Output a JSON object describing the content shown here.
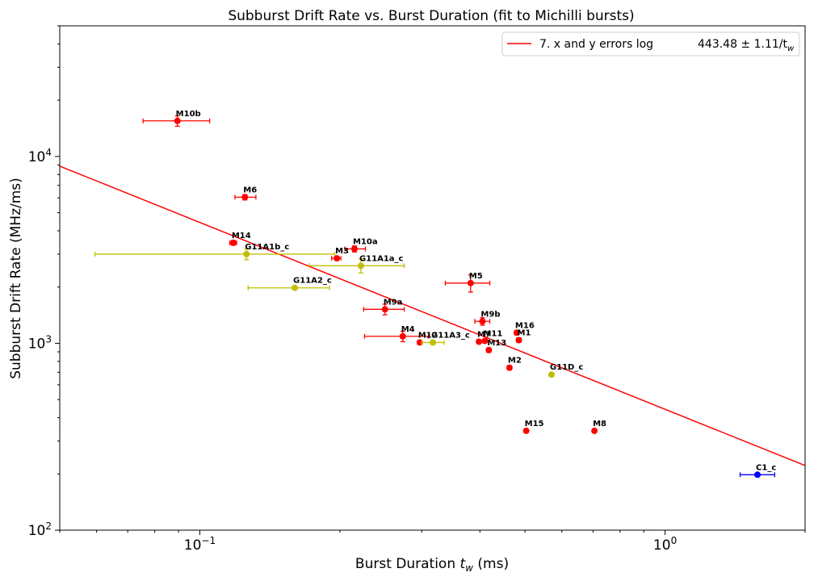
{
  "chart_data": {
    "type": "scatter",
    "title": "Subburst Drift Rate vs. Burst Duration (fit to Michilli bursts)",
    "xlabel": "Burst Duration t_w (ms)",
    "ylabel": "Subburst Drift Rate (MHz/ms)",
    "x_scale": "log",
    "y_scale": "log",
    "xlim": [
      0.05,
      2.0
    ],
    "ylim": [
      100,
      50000
    ],
    "x_ticks": [
      {
        "value": 0.1,
        "label": "10",
        "exp": "−1"
      },
      {
        "value": 1.0,
        "label": "10",
        "exp": "0"
      }
    ],
    "y_ticks": [
      {
        "value": 100,
        "label": "10",
        "exp": "2"
      },
      {
        "value": 1000,
        "label": "10",
        "exp": "3"
      },
      {
        "value": 10000,
        "label": "10",
        "exp": "4"
      }
    ],
    "legend": {
      "position": "top-right",
      "label": "7. x and y errors log",
      "fit_text": "443.48 ± 1.11/t",
      "fit_sub": "w"
    },
    "fit_line": {
      "a": 443.48,
      "color": "#ff0000"
    },
    "colors": {
      "red": "#ff0000",
      "yellow": "#bfbf00",
      "blue": "#0000ff"
    },
    "points": [
      {
        "label": "M10b",
        "x": 0.0895,
        "y": 15500,
        "xerr": [
          0.0755,
          0.105
        ],
        "yerr": [
          14500,
          16500
        ],
        "color": "red"
      },
      {
        "label": "M6",
        "x": 0.125,
        "y": 6050,
        "xerr": [
          0.119,
          0.132
        ],
        "yerr": [
          5850,
          6250
        ],
        "color": "red"
      },
      {
        "label": "M14",
        "x": 0.118,
        "y": 3450,
        "xerr": [
          0.116,
          0.12
        ],
        "yerr": [
          3350,
          3550
        ],
        "color": "red"
      },
      {
        "label": "G11A1b_c",
        "x": 0.126,
        "y": 3000,
        "xerr": [
          0.0595,
          0.195
        ],
        "yerr": [
          2800,
          3200
        ],
        "color": "yellow"
      },
      {
        "label": "M10a",
        "x": 0.215,
        "y": 3200,
        "xerr": [
          0.205,
          0.227
        ],
        "yerr": [
          3080,
          3320
        ],
        "color": "red"
      },
      {
        "label": "M3",
        "x": 0.197,
        "y": 2850,
        "xerr": [
          0.192,
          0.201
        ],
        "yerr": [
          2780,
          2920
        ],
        "color": "red"
      },
      {
        "label": "G11A1a_c",
        "x": 0.222,
        "y": 2600,
        "xerr": [
          0.172,
          0.275
        ],
        "yerr": [
          2380,
          2820
        ],
        "color": "yellow"
      },
      {
        "label": "G11A2_c",
        "x": 0.16,
        "y": 1980,
        "xerr": [
          0.127,
          0.19
        ],
        "yerr": [
          1950,
          2010
        ],
        "color": "yellow"
      },
      {
        "label": "M5",
        "x": 0.382,
        "y": 2100,
        "xerr": [
          0.337,
          0.42
        ],
        "yerr": [
          1880,
          2320
        ],
        "color": "red"
      },
      {
        "label": "M9a",
        "x": 0.25,
        "y": 1520,
        "xerr": [
          0.225,
          0.275
        ],
        "yerr": [
          1420,
          1620
        ],
        "color": "red"
      },
      {
        "label": "M9b",
        "x": 0.405,
        "y": 1310,
        "xerr": [
          0.39,
          0.42
        ],
        "yerr": [
          1250,
          1370
        ],
        "color": "red"
      },
      {
        "label": "M16",
        "x": 0.48,
        "y": 1140,
        "xerr": [
          0.475,
          0.485
        ],
        "yerr": [
          1110,
          1170
        ],
        "color": "red"
      },
      {
        "label": "M1",
        "x": 0.485,
        "y": 1040,
        "xerr": [
          0.48,
          0.49
        ],
        "yerr": [
          1010,
          1070
        ],
        "color": "red"
      },
      {
        "label": "M4",
        "x": 0.273,
        "y": 1090,
        "xerr": [
          0.226,
          0.31
        ],
        "yerr": [
          1020,
          1160
        ],
        "color": "red"
      },
      {
        "label": "M12",
        "x": 0.297,
        "y": 1010,
        "xerr": [
          0.294,
          0.3
        ],
        "yerr": [
          985,
          1035
        ],
        "color": "red"
      },
      {
        "label": "G11A3_c",
        "x": 0.317,
        "y": 1010,
        "xerr": [
          0.3,
          0.335
        ],
        "yerr": [
          985,
          1035
        ],
        "color": "yellow"
      },
      {
        "label": "M7",
        "x": 0.398,
        "y": 1020,
        "xerr": [
          0.394,
          0.402
        ],
        "yerr": [
          995,
          1045
        ],
        "color": "red"
      },
      {
        "label": "M11",
        "x": 0.41,
        "y": 1030,
        "xerr": [
          0.406,
          0.414
        ],
        "yerr": [
          1005,
          1055
        ],
        "color": "red"
      },
      {
        "label": "M13",
        "x": 0.418,
        "y": 920,
        "xerr": [
          0.414,
          0.422
        ],
        "yerr": [
          895,
          945
        ],
        "color": "red"
      },
      {
        "label": "M2",
        "x": 0.463,
        "y": 740,
        "xerr": [
          0.459,
          0.467
        ],
        "yerr": [
          720,
          760
        ],
        "color": "red"
      },
      {
        "label": "G11D_c",
        "x": 0.57,
        "y": 680,
        "xerr": [
          0.566,
          0.574
        ],
        "yerr": [
          665,
          695
        ],
        "color": "yellow"
      },
      {
        "label": "M15",
        "x": 0.503,
        "y": 340,
        "xerr": [
          0.499,
          0.507
        ],
        "yerr": [
          333,
          347
        ],
        "color": "red"
      },
      {
        "label": "M8",
        "x": 0.705,
        "y": 340,
        "xerr": [
          0.699,
          0.711
        ],
        "yerr": [
          333,
          347
        ],
        "color": "red"
      },
      {
        "label": "C1_c",
        "x": 1.58,
        "y": 198,
        "xerr": [
          1.45,
          1.72
        ],
        "yerr": [
          194,
          202
        ],
        "color": "blue"
      }
    ]
  }
}
